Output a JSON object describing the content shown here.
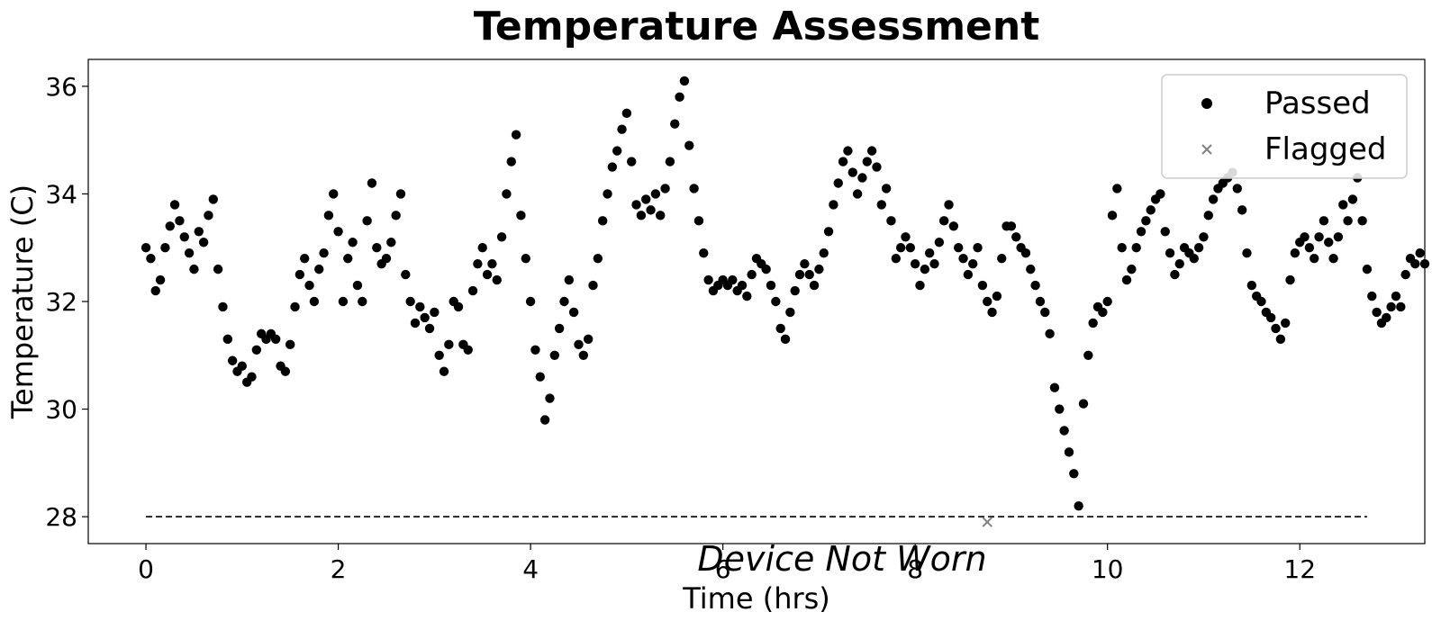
{
  "chart_data": {
    "type": "scatter",
    "title": "Temperature Assessment",
    "xlabel": "Time (hrs)",
    "ylabel": "Temperature (C)",
    "xlim": [
      -0.6,
      13.3
    ],
    "ylim": [
      27.5,
      36.5
    ],
    "xticks": [
      "0",
      "2",
      "4",
      "6",
      "8",
      "10",
      "12"
    ],
    "yticks": [
      "28",
      "30",
      "32",
      "34",
      "36"
    ],
    "grid": false,
    "legend_position": "top-right",
    "annotation": "Device Not Worn",
    "threshold": {
      "value": 28,
      "x_start": 0,
      "x_end": 12.7,
      "style": "dashed"
    },
    "colors": {
      "passed": "#000000",
      "flagged": "#808080"
    },
    "series": [
      {
        "name": "Passed",
        "marker": "circle",
        "points": [
          [
            0.0,
            33.0
          ],
          [
            0.05,
            32.8
          ],
          [
            0.1,
            32.2
          ],
          [
            0.15,
            32.4
          ],
          [
            0.2,
            33.0
          ],
          [
            0.25,
            33.4
          ],
          [
            0.3,
            33.8
          ],
          [
            0.35,
            33.5
          ],
          [
            0.4,
            33.2
          ],
          [
            0.45,
            32.9
          ],
          [
            0.5,
            32.6
          ],
          [
            0.55,
            33.3
          ],
          [
            0.6,
            33.1
          ],
          [
            0.65,
            33.6
          ],
          [
            0.7,
            33.9
          ],
          [
            0.75,
            32.6
          ],
          [
            0.8,
            31.9
          ],
          [
            0.85,
            31.3
          ],
          [
            0.9,
            30.9
          ],
          [
            0.95,
            30.7
          ],
          [
            1.0,
            30.8
          ],
          [
            1.05,
            30.5
          ],
          [
            1.1,
            30.6
          ],
          [
            1.15,
            31.1
          ],
          [
            1.2,
            31.4
          ],
          [
            1.25,
            31.3
          ],
          [
            1.3,
            31.4
          ],
          [
            1.35,
            31.3
          ],
          [
            1.4,
            30.8
          ],
          [
            1.45,
            30.7
          ],
          [
            1.5,
            31.2
          ],
          [
            1.55,
            31.9
          ],
          [
            1.6,
            32.5
          ],
          [
            1.65,
            32.8
          ],
          [
            1.7,
            32.3
          ],
          [
            1.75,
            32.0
          ],
          [
            1.8,
            32.6
          ],
          [
            1.85,
            32.9
          ],
          [
            1.9,
            33.6
          ],
          [
            1.95,
            34.0
          ],
          [
            2.0,
            33.3
          ],
          [
            2.05,
            32.0
          ],
          [
            2.1,
            32.8
          ],
          [
            2.15,
            33.1
          ],
          [
            2.2,
            32.3
          ],
          [
            2.25,
            32.0
          ],
          [
            2.3,
            33.5
          ],
          [
            2.35,
            34.2
          ],
          [
            2.4,
            33.0
          ],
          [
            2.45,
            32.7
          ],
          [
            2.5,
            32.8
          ],
          [
            2.55,
            33.1
          ],
          [
            2.6,
            33.6
          ],
          [
            2.65,
            34.0
          ],
          [
            2.7,
            32.5
          ],
          [
            2.75,
            32.0
          ],
          [
            2.8,
            31.6
          ],
          [
            2.85,
            31.9
          ],
          [
            2.9,
            31.7
          ],
          [
            2.95,
            31.5
          ],
          [
            3.0,
            31.8
          ],
          [
            3.05,
            31.0
          ],
          [
            3.1,
            30.7
          ],
          [
            3.15,
            31.2
          ],
          [
            3.2,
            32.0
          ],
          [
            3.25,
            31.9
          ],
          [
            3.3,
            31.2
          ],
          [
            3.35,
            31.1
          ],
          [
            3.4,
            32.2
          ],
          [
            3.45,
            32.7
          ],
          [
            3.5,
            33.0
          ],
          [
            3.55,
            32.5
          ],
          [
            3.6,
            32.7
          ],
          [
            3.65,
            32.4
          ],
          [
            3.7,
            33.2
          ],
          [
            3.75,
            34.0
          ],
          [
            3.8,
            34.6
          ],
          [
            3.85,
            35.1
          ],
          [
            3.9,
            33.6
          ],
          [
            3.95,
            32.8
          ],
          [
            4.0,
            32.0
          ],
          [
            4.05,
            31.1
          ],
          [
            4.1,
            30.6
          ],
          [
            4.15,
            29.8
          ],
          [
            4.2,
            30.2
          ],
          [
            4.25,
            31.0
          ],
          [
            4.3,
            31.5
          ],
          [
            4.35,
            32.0
          ],
          [
            4.4,
            32.4
          ],
          [
            4.45,
            31.8
          ],
          [
            4.5,
            31.2
          ],
          [
            4.55,
            31.0
          ],
          [
            4.6,
            31.3
          ],
          [
            4.65,
            32.3
          ],
          [
            4.7,
            32.8
          ],
          [
            4.75,
            33.5
          ],
          [
            4.8,
            34.0
          ],
          [
            4.85,
            34.5
          ],
          [
            4.9,
            34.8
          ],
          [
            4.95,
            35.2
          ],
          [
            5.0,
            35.5
          ],
          [
            5.05,
            34.6
          ],
          [
            5.1,
            33.8
          ],
          [
            5.15,
            33.6
          ],
          [
            5.2,
            33.9
          ],
          [
            5.25,
            33.7
          ],
          [
            5.3,
            34.0
          ],
          [
            5.35,
            33.6
          ],
          [
            5.4,
            34.1
          ],
          [
            5.45,
            34.6
          ],
          [
            5.5,
            35.3
          ],
          [
            5.55,
            35.8
          ],
          [
            5.6,
            36.1
          ],
          [
            5.65,
            34.9
          ],
          [
            5.7,
            34.1
          ],
          [
            5.75,
            33.5
          ],
          [
            5.8,
            32.9
          ],
          [
            5.85,
            32.4
          ],
          [
            5.9,
            32.2
          ],
          [
            5.95,
            32.3
          ],
          [
            6.0,
            32.4
          ],
          [
            6.05,
            32.3
          ],
          [
            6.1,
            32.4
          ],
          [
            6.15,
            32.2
          ],
          [
            6.2,
            32.3
          ],
          [
            6.25,
            32.1
          ],
          [
            6.3,
            32.5
          ],
          [
            6.35,
            32.8
          ],
          [
            6.4,
            32.7
          ],
          [
            6.45,
            32.6
          ],
          [
            6.5,
            32.3
          ],
          [
            6.55,
            32.0
          ],
          [
            6.6,
            31.5
          ],
          [
            6.65,
            31.3
          ],
          [
            6.7,
            31.8
          ],
          [
            6.75,
            32.2
          ],
          [
            6.8,
            32.5
          ],
          [
            6.85,
            32.7
          ],
          [
            6.9,
            32.5
          ],
          [
            6.95,
            32.3
          ],
          [
            7.0,
            32.6
          ],
          [
            7.05,
            32.9
          ],
          [
            7.1,
            33.3
          ],
          [
            7.15,
            33.8
          ],
          [
            7.2,
            34.2
          ],
          [
            7.25,
            34.6
          ],
          [
            7.3,
            34.8
          ],
          [
            7.35,
            34.4
          ],
          [
            7.4,
            34.0
          ],
          [
            7.45,
            34.3
          ],
          [
            7.5,
            34.6
          ],
          [
            7.55,
            34.8
          ],
          [
            7.6,
            34.5
          ],
          [
            7.65,
            33.8
          ],
          [
            7.7,
            34.1
          ],
          [
            7.75,
            33.5
          ],
          [
            7.8,
            32.8
          ],
          [
            7.85,
            33.0
          ],
          [
            7.9,
            33.2
          ],
          [
            7.95,
            33.0
          ],
          [
            8.0,
            32.7
          ],
          [
            8.05,
            32.3
          ],
          [
            8.1,
            32.6
          ],
          [
            8.15,
            32.9
          ],
          [
            8.2,
            32.7
          ],
          [
            8.25,
            33.1
          ],
          [
            8.3,
            33.5
          ],
          [
            8.35,
            33.8
          ],
          [
            8.4,
            33.4
          ],
          [
            8.45,
            33.0
          ],
          [
            8.5,
            32.8
          ],
          [
            8.55,
            32.5
          ],
          [
            8.6,
            32.7
          ],
          [
            8.65,
            33.0
          ],
          [
            8.7,
            32.3
          ],
          [
            8.75,
            32.0
          ],
          [
            8.8,
            31.8
          ],
          [
            8.85,
            32.1
          ],
          [
            8.9,
            32.8
          ],
          [
            8.95,
            33.4
          ],
          [
            9.0,
            33.4
          ],
          [
            9.05,
            33.2
          ],
          [
            9.1,
            33.0
          ],
          [
            9.15,
            32.9
          ],
          [
            9.2,
            32.6
          ],
          [
            9.25,
            32.3
          ],
          [
            9.3,
            32.0
          ],
          [
            9.35,
            31.8
          ],
          [
            9.4,
            31.4
          ],
          [
            9.45,
            30.4
          ],
          [
            9.5,
            30.0
          ],
          [
            9.55,
            29.6
          ],
          [
            9.6,
            29.2
          ],
          [
            9.65,
            28.8
          ],
          [
            9.7,
            28.2
          ],
          [
            9.75,
            30.1
          ],
          [
            9.8,
            31.0
          ],
          [
            9.85,
            31.6
          ],
          [
            9.9,
            31.9
          ],
          [
            9.95,
            31.8
          ],
          [
            10.0,
            32.0
          ],
          [
            10.05,
            33.6
          ],
          [
            10.1,
            34.1
          ],
          [
            10.15,
            33.0
          ],
          [
            10.2,
            32.4
          ],
          [
            10.25,
            32.6
          ],
          [
            10.3,
            33.0
          ],
          [
            10.35,
            33.3
          ],
          [
            10.4,
            33.5
          ],
          [
            10.45,
            33.7
          ],
          [
            10.5,
            33.9
          ],
          [
            10.55,
            34.0
          ],
          [
            10.6,
            33.3
          ],
          [
            10.65,
            32.9
          ],
          [
            10.7,
            32.5
          ],
          [
            10.75,
            32.7
          ],
          [
            10.8,
            33.0
          ],
          [
            10.85,
            32.9
          ],
          [
            10.9,
            32.8
          ],
          [
            10.95,
            33.0
          ],
          [
            11.0,
            33.2
          ],
          [
            11.05,
            33.6
          ],
          [
            11.1,
            33.9
          ],
          [
            11.15,
            34.1
          ],
          [
            11.2,
            34.2
          ],
          [
            11.25,
            34.3
          ],
          [
            11.3,
            34.4
          ],
          [
            11.35,
            34.1
          ],
          [
            11.4,
            33.7
          ],
          [
            11.45,
            32.9
          ],
          [
            11.5,
            32.3
          ],
          [
            11.55,
            32.1
          ],
          [
            11.6,
            32.0
          ],
          [
            11.65,
            31.8
          ],
          [
            11.7,
            31.7
          ],
          [
            11.75,
            31.5
          ],
          [
            11.8,
            31.3
          ],
          [
            11.85,
            31.6
          ],
          [
            11.9,
            32.4
          ],
          [
            11.95,
            32.9
          ],
          [
            12.0,
            33.1
          ],
          [
            12.05,
            33.2
          ],
          [
            12.1,
            33.0
          ],
          [
            12.15,
            32.8
          ],
          [
            12.2,
            33.2
          ],
          [
            12.25,
            33.5
          ],
          [
            12.3,
            33.1
          ],
          [
            12.35,
            32.8
          ],
          [
            12.4,
            33.2
          ],
          [
            12.45,
            33.8
          ],
          [
            12.5,
            33.5
          ],
          [
            12.55,
            33.9
          ],
          [
            12.6,
            34.3
          ],
          [
            12.65,
            33.5
          ],
          [
            12.7,
            32.6
          ],
          [
            12.75,
            32.1
          ],
          [
            12.8,
            31.8
          ],
          [
            12.85,
            31.6
          ],
          [
            12.9,
            31.7
          ],
          [
            12.95,
            31.9
          ],
          [
            13.0,
            32.1
          ],
          [
            13.05,
            31.9
          ],
          [
            13.1,
            32.5
          ],
          [
            13.15,
            32.8
          ],
          [
            13.2,
            32.7
          ],
          [
            13.25,
            32.9
          ],
          [
            13.3,
            32.7
          ]
        ]
      },
      {
        "name": "Flagged",
        "marker": "x",
        "points": [
          [
            8.75,
            27.9
          ]
        ]
      }
    ]
  }
}
